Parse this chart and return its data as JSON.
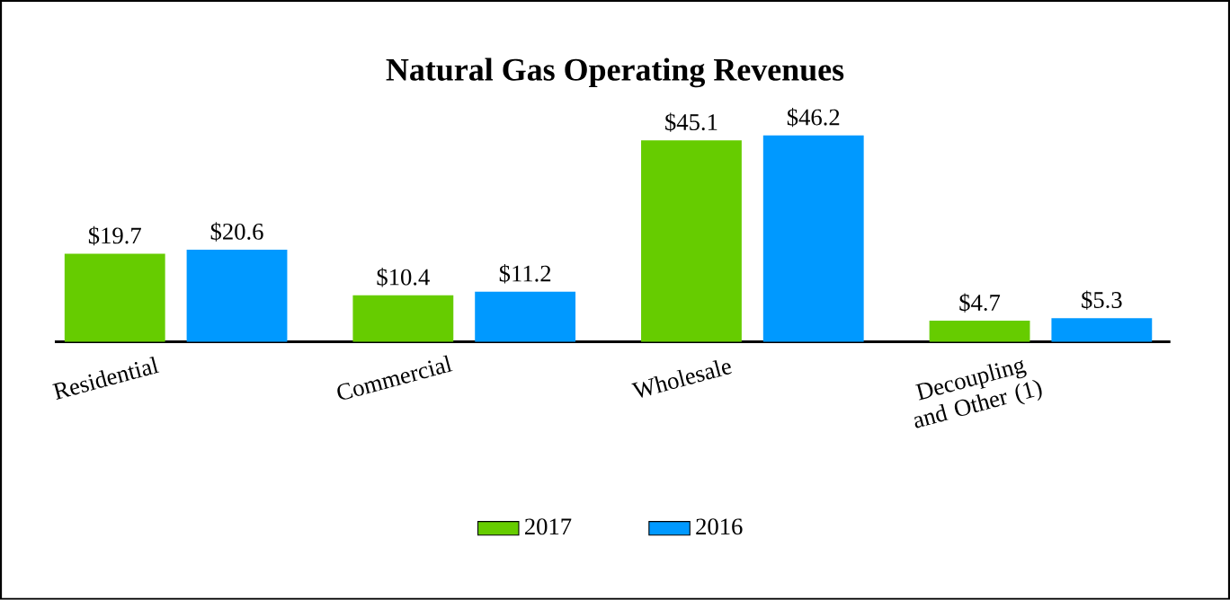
{
  "chart_data": {
    "type": "bar",
    "title": "Natural Gas Operating Revenues",
    "categories": [
      "Residential",
      "Commercial",
      "Wholesale",
      "Decoupling and Other (1)"
    ],
    "series": [
      {
        "name": "2017",
        "color": "#66cc00",
        "values": [
          19.7,
          10.4,
          45.1,
          4.7
        ],
        "value_labels": [
          "$19.7",
          "$10.4",
          "$45.1",
          "$4.7"
        ]
      },
      {
        "name": "2016",
        "color": "#0099ff",
        "values": [
          20.6,
          11.2,
          46.2,
          5.3
        ],
        "value_labels": [
          "$20.6",
          "$11.2",
          "$46.2",
          "$5.3"
        ]
      }
    ],
    "legend": "bottom"
  }
}
